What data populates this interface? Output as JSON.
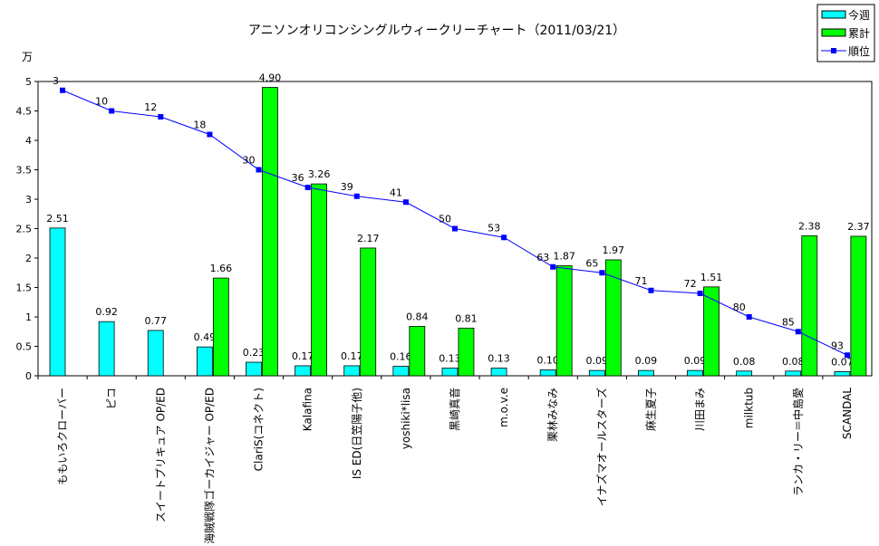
{
  "chart_data": {
    "type": "bar",
    "title": "アニソンオリコンシングルウィークリーチャート（2011/03/21）",
    "ylabel": "万",
    "ylim": [
      0,
      5
    ],
    "yticks": [
      "0",
      "0.5",
      "1",
      "1.5",
      "2",
      "2.5",
      "3",
      "3.5",
      "4",
      "4.5",
      "5"
    ],
    "grid": false,
    "legend_position": "top-right",
    "categories": [
      "ももいろクローバー",
      "ピコ",
      "スイートプリキュア OP/ED",
      "海賊戦隊ゴーカイジャー OP/ED",
      "ClariS(コネクト)",
      "Kalafina",
      "IS ED(日笠陽子他)",
      "yoshiki*lisa",
      "黒崎真音",
      "m.o.v.e",
      "栗林みなみ",
      "イナズマオールスターズ",
      "麻生夏子",
      "川田まみ",
      "milktub",
      "ランカ・リー＝中島愛",
      "SCANDAL"
    ],
    "series": [
      {
        "name": "今週",
        "type": "bar",
        "color": "#00FFFF",
        "values": [
          2.51,
          0.92,
          0.77,
          0.49,
          0.23,
          0.17,
          0.17,
          0.16,
          0.13,
          0.13,
          0.1,
          0.09,
          0.09,
          0.09,
          0.08,
          0.08,
          0.07
        ],
        "labels": [
          "2.51",
          "0.92",
          "0.77",
          "0.49",
          "0.23",
          "0.17",
          "0.17",
          "0.16",
          "0.13",
          "0.13",
          "0.10",
          "0.09",
          "0.09",
          "0.09",
          "0.08",
          "0.08",
          "0.07"
        ]
      },
      {
        "name": "累計",
        "type": "bar",
        "color": "#00FF00",
        "values": [
          null,
          null,
          null,
          1.66,
          4.9,
          3.26,
          2.17,
          0.84,
          0.81,
          null,
          1.87,
          1.97,
          null,
          1.51,
          null,
          2.38,
          2.37
        ],
        "labels": [
          null,
          null,
          null,
          "1.66",
          "4.90",
          "3.26",
          "2.17",
          "0.84",
          "0.81",
          null,
          "1.87",
          "1.97",
          null,
          "1.51",
          null,
          "2.38",
          "2.37"
        ]
      },
      {
        "name": "順位",
        "type": "line",
        "color": "#0000FF",
        "axis": "secondary (hidden, inverted 0-100)",
        "values": [
          3,
          10,
          12,
          18,
          30,
          36,
          39,
          41,
          50,
          53,
          63,
          65,
          71,
          72,
          80,
          85,
          93
        ]
      }
    ]
  }
}
